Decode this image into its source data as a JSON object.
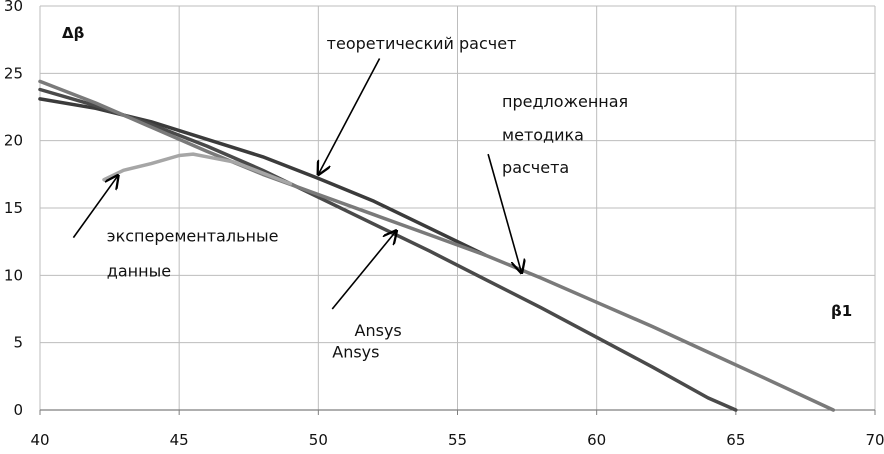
{
  "chart_data": {
    "type": "line",
    "title": "",
    "xlabel": "β1",
    "ylabel": "Δβ",
    "xlim": [
      40,
      70
    ],
    "ylim": [
      0,
      30
    ],
    "xticks": [
      40,
      45,
      50,
      55,
      60,
      65,
      70
    ],
    "yticks": [
      0,
      5,
      10,
      15,
      20,
      25,
      30
    ],
    "grid": true,
    "legend": "none",
    "series": [
      {
        "key": "theoretical",
        "color": "#3b3b3b",
        "x": [
          40,
          42,
          44,
          46,
          48,
          50,
          52,
          54,
          56
        ],
        "y": [
          23.1,
          22.4,
          21.4,
          20.1,
          18.8,
          17.2,
          15.5,
          13.5,
          11.5
        ]
      },
      {
        "key": "ansys",
        "color": "#4a4a4a",
        "x": [
          40,
          42,
          44,
          46,
          48,
          50,
          52,
          54,
          56,
          58,
          60,
          62,
          64,
          65
        ],
        "y": [
          23.8,
          22.6,
          21.2,
          19.6,
          17.8,
          15.8,
          13.8,
          11.8,
          9.7,
          7.6,
          5.4,
          3.2,
          0.9,
          0
        ]
      },
      {
        "key": "proposed",
        "color": "#7a7a7a",
        "x": [
          40,
          42,
          44,
          46,
          48,
          50,
          52,
          54,
          56,
          58,
          60,
          62,
          64,
          66,
          68.5
        ],
        "y": [
          24.4,
          22.8,
          21.0,
          19.2,
          17.5,
          16.0,
          14.5,
          13.0,
          11.5,
          9.8,
          8.0,
          6.2,
          4.3,
          2.4,
          0
        ]
      },
      {
        "key": "experimental",
        "color": "#a6a6a6",
        "x": [
          42.3,
          43,
          44,
          45,
          45.5,
          46,
          47,
          48,
          49
        ],
        "y": [
          17.1,
          17.8,
          18.3,
          18.9,
          19.0,
          18.8,
          18.4,
          17.6,
          16.8
        ]
      }
    ],
    "annotations": [
      {
        "key": "theoretical",
        "text": "теоретический расчет",
        "text_at": [
          50.3,
          26.8
        ],
        "arrow_from": [
          52.2,
          26.1
        ],
        "arrow_to": [
          50.0,
          17.5
        ]
      },
      {
        "key": "proposed_1",
        "text": "предложенная",
        "text_at": [
          56.6,
          22.5
        ]
      },
      {
        "key": "proposed_2",
        "text": "методика",
        "text_at": [
          56.6,
          20.0
        ]
      },
      {
        "key": "proposed_3",
        "text": "расчета",
        "text_at": [
          56.6,
          17.6
        ],
        "arrow_from": [
          56.1,
          19.0
        ],
        "arrow_to": [
          57.3,
          10.2
        ]
      },
      {
        "key": "experimental_1",
        "text": "эксперементальные",
        "text_at": [
          42.4,
          12.5
        ]
      },
      {
        "key": "experimental_2",
        "text": "данные",
        "text_at": [
          42.4,
          9.9
        ],
        "arrow_from": [
          41.2,
          12.8
        ],
        "arrow_to": [
          42.8,
          17.4
        ]
      },
      {
        "key": "ansys_1",
        "text": "Ansys",
        "text_at": [
          51.3,
          5.5
        ],
        "arrow_from": [
          50.5,
          7.5
        ],
        "arrow_to": [
          52.8,
          13.3
        ]
      },
      {
        "key": "ansys_2",
        "text": "Ansys",
        "text_at": [
          50.5,
          3.9
        ]
      }
    ]
  }
}
